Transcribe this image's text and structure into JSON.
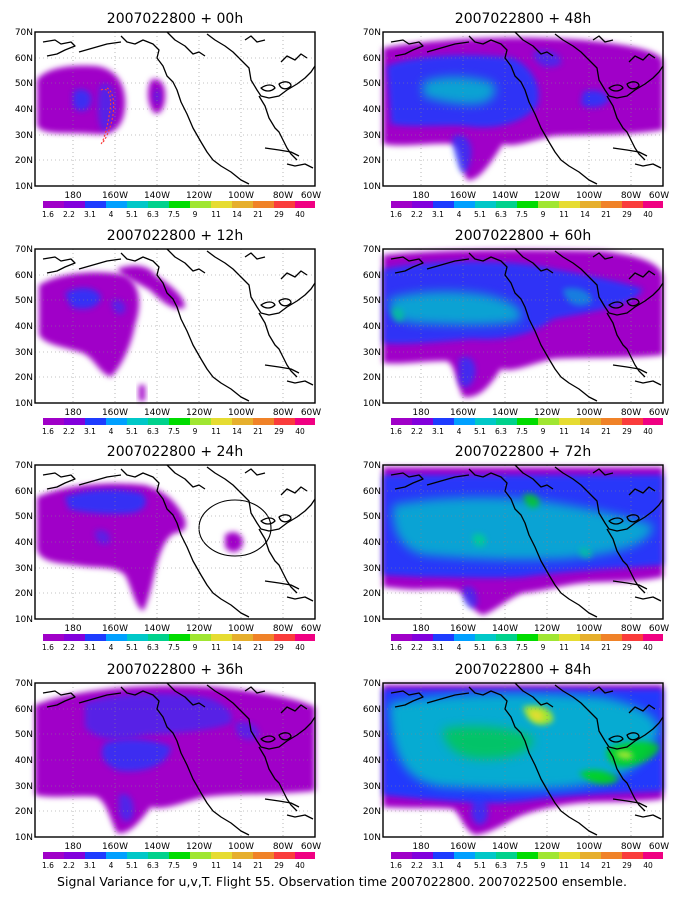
{
  "caption": "Signal Variance for u,v,T. Flight 55. Observation time 2007022800. 2007022500 ensemble.",
  "lat_labels": [
    "70N",
    "60N",
    "50N",
    "40N",
    "30N",
    "20N",
    "10N"
  ],
  "lon_labels": [
    "180",
    "160W",
    "140W",
    "120W",
    "100W",
    "80W",
    "60W"
  ],
  "colorbar": {
    "labels": [
      "1.6",
      "2.2",
      "3.1",
      "4",
      "5.1",
      "6.3",
      "7.5",
      "9",
      "11",
      "14",
      "21",
      "29",
      "40"
    ],
    "colors": [
      "#a000c8",
      "#8200dc",
      "#1e3cff",
      "#00a0ff",
      "#00c8c8",
      "#00d28c",
      "#00dc00",
      "#a0e632",
      "#e6dc32",
      "#e6af2d",
      "#f08228",
      "#fa3c3c",
      "#f00082"
    ]
  },
  "panels": [
    {
      "title": "2007022800 + 00h"
    },
    {
      "title": "2007022800 + 48h"
    },
    {
      "title": "2007022800 + 12h"
    },
    {
      "title": "2007022800 + 60h"
    },
    {
      "title": "2007022800 + 24h"
    },
    {
      "title": "2007022800 + 72h"
    },
    {
      "title": "2007022800 + 36h"
    },
    {
      "title": "2007022800 + 84h"
    }
  ]
}
